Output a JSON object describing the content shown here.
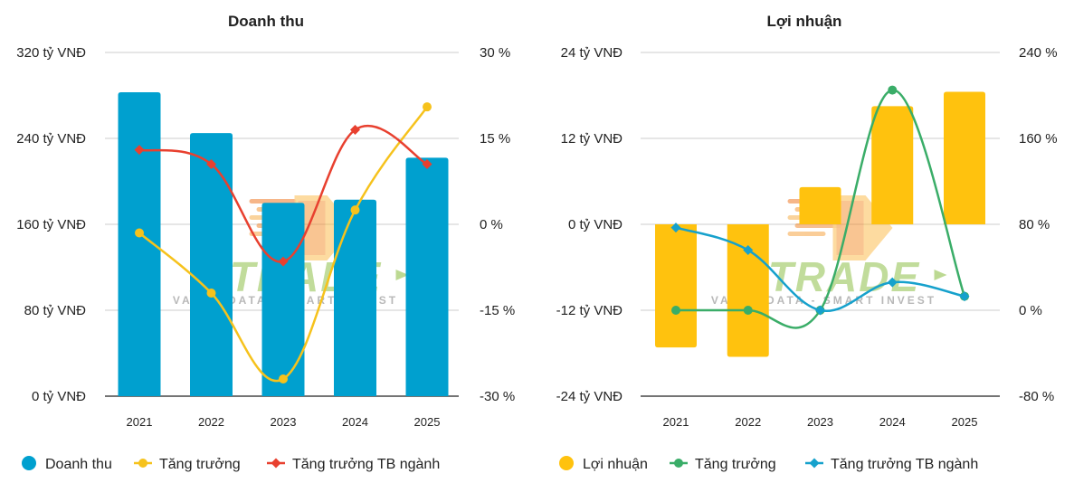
{
  "colors": {
    "revenue_bar": "#00a0cf",
    "revenue_growth": "#f6c21c",
    "revenue_industry": "#e8402f",
    "profit_bar": "#ffc20e",
    "profit_growth": "#3aad68",
    "profit_industry": "#16a1cc"
  },
  "watermark": {
    "brand": "FITRADE",
    "tagline": "VALUE DATA - SMART INVEST"
  },
  "chart_data": [
    {
      "id": "revenue",
      "type": "bar",
      "title": "Doanh thu",
      "categories": [
        "2021",
        "2022",
        "2023",
        "2024",
        "2025"
      ],
      "ylim": [
        0,
        320
      ],
      "y_ticks": [
        0,
        80,
        160,
        240,
        320
      ],
      "y_tick_labels": [
        "0 tỷ VNĐ",
        "80 tỷ VNĐ",
        "160 tỷ VNĐ",
        "240 tỷ VNĐ",
        "320 tỷ VNĐ"
      ],
      "y2lim": [
        -30,
        30
      ],
      "y2_ticks": [
        -30,
        -15,
        0,
        15,
        30
      ],
      "y2_tick_labels": [
        "-30 %",
        "-15 %",
        "0 %",
        "15 %",
        "30 %"
      ],
      "bars": {
        "name": "Doanh thu",
        "values": [
          283,
          245,
          180,
          183,
          222
        ]
      },
      "lines": [
        {
          "name": "Tăng trưởng",
          "marker": "circle",
          "values": [
            -1.5,
            -12,
            -27,
            2.5,
            20.5
          ]
        },
        {
          "name": "Tăng trưởng TB ngành",
          "marker": "diamond",
          "values": [
            13,
            10.5,
            -6.5,
            16.5,
            10.5
          ]
        }
      ],
      "legend": [
        "Doanh thu",
        "Tăng trưởng",
        "Tăng trưởng TB ngành"
      ]
    },
    {
      "id": "profit",
      "type": "bar",
      "title": "Lợi nhuận",
      "categories": [
        "2021",
        "2022",
        "2023",
        "2024",
        "2025"
      ],
      "ylim": [
        -24,
        24
      ],
      "y_ticks": [
        -24,
        -12,
        0,
        12,
        24
      ],
      "y_tick_labels": [
        "-24 tỷ VNĐ",
        "-12 tỷ VNĐ",
        "0 tỷ VNĐ",
        "12 tỷ VNĐ",
        "24 tỷ VNĐ"
      ],
      "y2lim": [
        -80,
        240
      ],
      "y2_ticks": [
        -80,
        0,
        80,
        160,
        240
      ],
      "y2_tick_labels": [
        "-80 %",
        "0 %",
        "80 %",
        "160 %",
        "240 %"
      ],
      "bars": {
        "name": "Lợi nhuận",
        "values": [
          -17.2,
          -18.5,
          5.2,
          16.5,
          18.5
        ]
      },
      "lines": [
        {
          "name": "Tăng trưởng",
          "marker": "circle",
          "values": [
            0,
            0,
            0,
            205,
            13
          ]
        },
        {
          "name": "Tăng trưởng TB ngành",
          "marker": "diamond",
          "values": [
            77,
            56,
            0,
            26,
            13
          ]
        }
      ],
      "legend": [
        "Lợi nhuận",
        "Tăng trưởng",
        "Tăng trưởng TB ngành"
      ]
    }
  ]
}
